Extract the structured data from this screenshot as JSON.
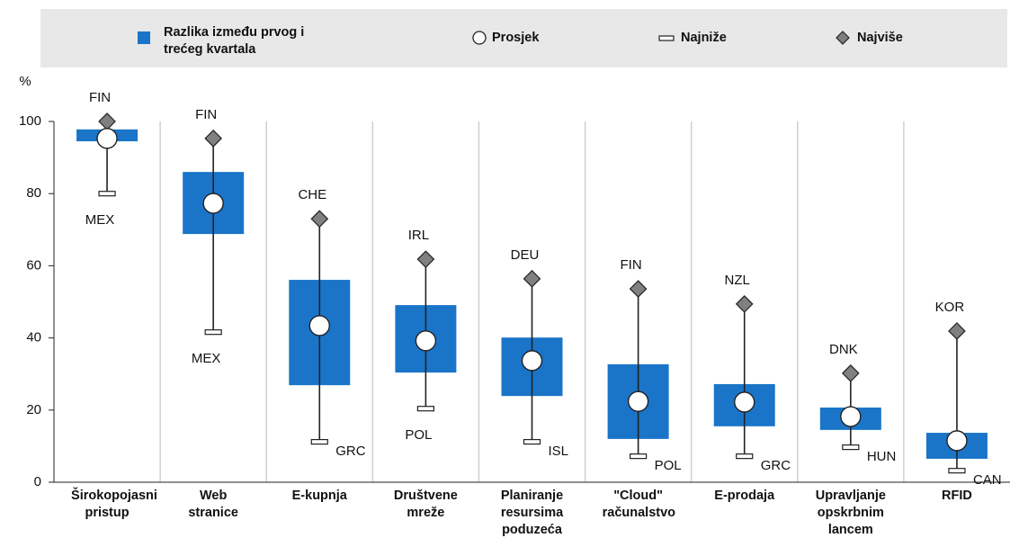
{
  "chart_data": {
    "type": "range-box",
    "ylabel": "%",
    "categories": [
      "Širokopojasni pristup",
      "Web stranice",
      "E-kupnja",
      "Društvene mreže",
      "Planiranje resursima poduzeća",
      "\"Cloud\" računalstvo",
      "E-prodaja",
      "Upravljanje opskrbnim lancem",
      "RFID"
    ],
    "box": {
      "name": "Razlika između prvog i trećeg kvartala",
      "color": "#1a75c9",
      "q1": [
        94.5,
        68.8,
        26.9,
        30.4,
        23.9,
        12,
        15.5,
        14.5,
        6.5
      ],
      "q3": [
        97.8,
        86,
        56.1,
        49.1,
        40.1,
        32.7,
        27.2,
        20.7,
        13.7
      ]
    },
    "mean": {
      "name": "Prosjek",
      "values": [
        95.3,
        77.3,
        43.4,
        39.2,
        33.7,
        22.4,
        22.2,
        18.2,
        11.5
      ]
    },
    "min": {
      "name": "Najniže",
      "values": [
        80,
        41.6,
        11.2,
        20.4,
        11.2,
        7.2,
        7.2,
        9.7,
        3.2
      ],
      "labels": [
        "MEX",
        "MEX",
        "GRC",
        "POL",
        "ISL",
        "POL",
        "GRC",
        "HUN",
        "CAN"
      ]
    },
    "max": {
      "name": "Najviše",
      "color": "#808080",
      "values": [
        100,
        95.3,
        73,
        61.8,
        56.4,
        53.6,
        49.4,
        30.2,
        41.9
      ],
      "labels": [
        "FIN",
        "FIN",
        "CHE",
        "IRL",
        "DEU",
        "FIN",
        "NZL",
        "DNK",
        "KOR"
      ]
    },
    "ylim": [
      0,
      100
    ],
    "yticks": [
      0,
      20,
      40,
      60,
      80,
      100
    ]
  }
}
